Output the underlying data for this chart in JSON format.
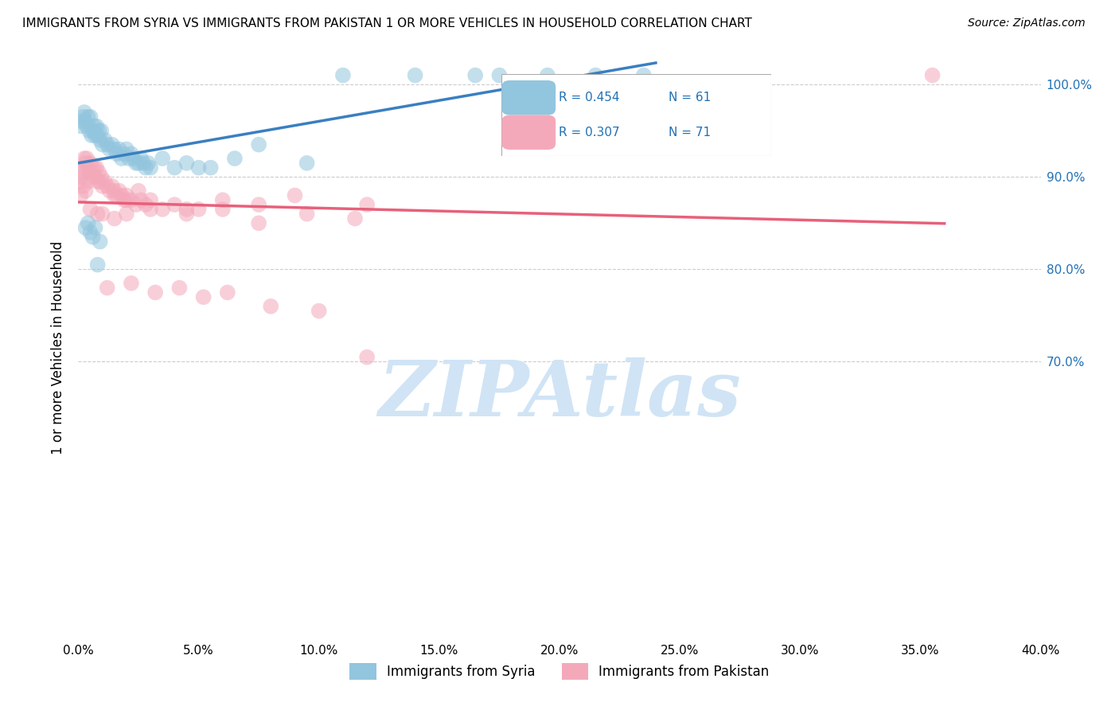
{
  "title": "IMMIGRANTS FROM SYRIA VS IMMIGRANTS FROM PAKISTAN 1 OR MORE VEHICLES IN HOUSEHOLD CORRELATION CHART",
  "source": "Source: ZipAtlas.com",
  "ylabel": "1 or more Vehicles in Household",
  "xmin": 0.0,
  "xmax": 40.0,
  "ymin": 40.0,
  "ymax": 103.0,
  "ytick_vals": [
    70.0,
    80.0,
    90.0,
    100.0
  ],
  "ytick_labels": [
    "70.0%",
    "80.0%",
    "90.0%",
    "100.0%"
  ],
  "xtick_vals": [
    0.0,
    5.0,
    10.0,
    15.0,
    20.0,
    25.0,
    30.0,
    35.0,
    40.0
  ],
  "xtick_labels": [
    "0.0%",
    "5.0%",
    "10.0%",
    "15.0%",
    "20.0%",
    "25.0%",
    "30.0%",
    "35.0%",
    "40.0%"
  ],
  "legend_R_blue": "R = 0.454",
  "legend_N_blue": "N = 61",
  "legend_R_pink": "R = 0.307",
  "legend_N_pink": "N = 71",
  "legend_label_blue": "Immigrants from Syria",
  "legend_label_pink": "Immigrants from Pakistan",
  "color_blue": "#92c5de",
  "color_pink": "#f4a9bb",
  "color_blue_line": "#3a7fc1",
  "color_pink_line": "#e8607a",
  "color_blue_text": "#2171b5",
  "watermark": "ZIPAtlas",
  "watermark_color": "#d0e4f5",
  "syria_x": [
    0.1,
    0.15,
    0.2,
    0.25,
    0.3,
    0.35,
    0.4,
    0.45,
    0.5,
    0.55,
    0.6,
    0.65,
    0.7,
    0.75,
    0.8,
    0.85,
    0.9,
    0.95,
    1.0,
    1.1,
    1.2,
    1.3,
    1.4,
    1.5,
    1.6,
    1.7,
    1.8,
    1.9,
    2.0,
    2.1,
    2.2,
    2.3,
    2.4,
    2.5,
    2.6,
    2.7,
    2.8,
    2.9,
    3.0,
    3.5,
    4.0,
    4.5,
    5.0,
    5.5,
    6.5,
    7.5,
    9.5,
    11.0,
    14.0,
    16.5,
    17.5,
    19.5,
    21.5,
    23.5,
    0.3,
    0.4,
    0.5,
    0.6,
    0.7,
    0.8,
    0.9
  ],
  "syria_y": [
    95.5,
    96.0,
    96.5,
    97.0,
    96.0,
    95.5,
    96.5,
    95.0,
    96.5,
    94.5,
    95.0,
    95.5,
    94.5,
    95.5,
    94.5,
    95.0,
    94.0,
    95.0,
    93.5,
    94.0,
    93.5,
    93.0,
    93.5,
    93.0,
    92.5,
    93.0,
    92.0,
    92.5,
    93.0,
    92.0,
    92.5,
    92.0,
    91.5,
    91.5,
    92.0,
    91.5,
    91.0,
    91.5,
    91.0,
    92.0,
    91.0,
    91.5,
    91.0,
    91.0,
    92.0,
    93.5,
    91.5,
    101.0,
    101.0,
    101.0,
    101.0,
    101.0,
    101.0,
    101.0,
    84.5,
    85.0,
    84.0,
    83.5,
    84.5,
    80.5,
    83.0
  ],
  "pakistan_x": [
    0.05,
    0.1,
    0.15,
    0.2,
    0.25,
    0.3,
    0.35,
    0.4,
    0.45,
    0.5,
    0.55,
    0.6,
    0.65,
    0.7,
    0.75,
    0.8,
    0.85,
    0.9,
    0.95,
    1.0,
    1.1,
    1.2,
    1.3,
    1.4,
    1.5,
    1.6,
    1.7,
    1.8,
    1.9,
    2.0,
    2.2,
    2.4,
    2.6,
    2.8,
    3.0,
    3.5,
    4.0,
    4.5,
    5.0,
    6.0,
    7.5,
    9.0,
    12.0,
    1.0,
    1.5,
    0.5,
    0.8,
    2.0,
    3.0,
    4.5,
    6.0,
    7.5,
    9.5,
    11.5,
    1.5,
    2.0,
    2.5,
    0.1,
    0.2,
    0.3,
    0.4,
    35.5,
    1.2,
    2.2,
    3.2,
    4.2,
    5.2,
    6.2,
    8.0,
    10.0,
    12.0
  ],
  "pakistan_y": [
    89.5,
    90.0,
    90.5,
    91.0,
    92.0,
    91.5,
    92.0,
    91.0,
    90.5,
    91.5,
    90.5,
    90.0,
    91.0,
    90.0,
    91.0,
    89.5,
    90.5,
    89.5,
    90.0,
    89.0,
    89.5,
    89.0,
    88.5,
    89.0,
    88.5,
    88.0,
    88.5,
    88.0,
    87.5,
    88.0,
    87.5,
    87.0,
    87.5,
    87.0,
    87.5,
    86.5,
    87.0,
    86.5,
    86.5,
    87.5,
    87.0,
    88.0,
    87.0,
    86.0,
    85.5,
    86.5,
    86.0,
    86.0,
    86.5,
    86.0,
    86.5,
    85.0,
    86.0,
    85.5,
    88.0,
    87.5,
    88.5,
    88.0,
    89.0,
    88.5,
    89.5,
    101.0,
    78.0,
    78.5,
    77.5,
    78.0,
    77.0,
    77.5,
    76.0,
    75.5,
    70.5
  ]
}
